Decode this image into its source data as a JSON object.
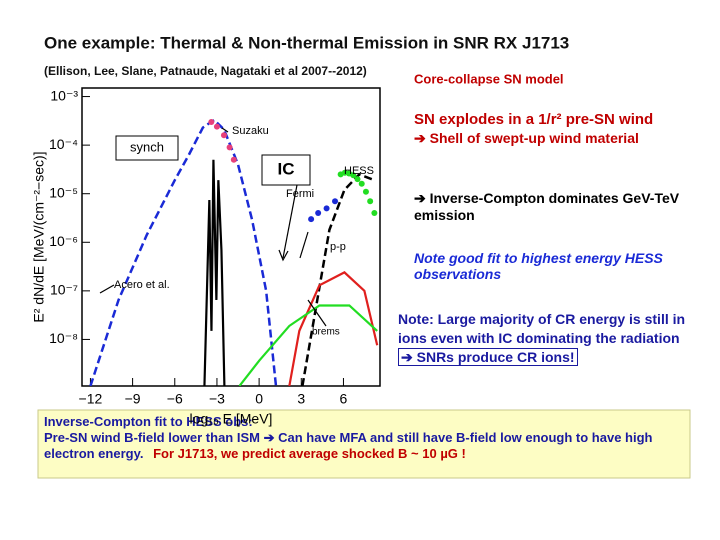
{
  "slide": {
    "title": "One example: Thermal & Non-thermal Emission in   SNR RX J1713",
    "subtitle": "(Ellison, Lee, Slane, Patnaude, Nagataki et al 2007--2012)",
    "model": "Core-collapse SN model",
    "point1": "SN explodes in a 1/r² pre-SN wind",
    "point2": "➔ Shell of swept-up wind material",
    "point3": "➔ Inverse-Compton dominates GeV-TeV emission",
    "note_fit": "Note good fit to highest energy HESS observations",
    "note_ions": "Note: Large majority of CR energy is still in ions even with IC dominating the radiation",
    "note_conclusion": "➔ SNRs produce CR ions!",
    "box_line1": "Inverse-Compton fit to HESS obs:",
    "box_line2": "Pre-SN wind B-field lower than ISM ➔ Can have MFA and still have B-field low enough to have high electron energy.",
    "box_line3": "For J1713, we predict average shocked B ~ 10 µG !"
  },
  "chart_data": {
    "type": "line",
    "xlabel": "log₁₀ E [MeV]",
    "ylabel": "E² dN/dE [MeV/(cm⁻²−sec)]",
    "xlim": [
      -12.6,
      8.6
    ],
    "xticks": [
      {
        "value": -12,
        "label": "−12"
      },
      {
        "value": -9,
        "label": "−9"
      },
      {
        "value": -6,
        "label": "−6"
      },
      {
        "value": -3,
        "label": "−3"
      },
      0,
      3,
      6
    ],
    "ylim": [
      1.1e-09,
      0.0015
    ],
    "ylog": true,
    "yticks": [
      {
        "value": 0.001,
        "label": "10⁻³"
      },
      {
        "value": 0.0001,
        "label": "10⁻⁴"
      },
      {
        "value": 1e-05,
        "label": "10⁻⁵"
      },
      {
        "value": 1e-06,
        "label": "10⁻⁶"
      },
      {
        "value": 1e-07,
        "label": "10⁻⁷"
      },
      {
        "value": 1e-08,
        "label": "10⁻⁸"
      }
    ],
    "annotations": [
      "synch",
      "IC",
      "Suzaku",
      "HESS",
      "Fermi",
      "p-p",
      "brems",
      "Acero et al."
    ],
    "series": [
      {
        "name": "synch",
        "kind": "line",
        "color": "#1a2ad6",
        "dash": true,
        "x": [
          -12,
          -10,
          -8,
          -6,
          -5,
          -4,
          -3.2,
          -2.5,
          -1.5,
          -0.5,
          0.5,
          1.2
        ],
        "values": [
          1.1e-09,
          6.5e-08,
          1.4e-06,
          1.9e-05,
          6.3e-05,
          0.00023,
          0.00033,
          0.00021,
          4e-05,
          2.9e-06,
          1e-07,
          1.1e-09
        ]
      },
      {
        "kind": "line",
        "color": "#000000",
        "dash": false,
        "x": [
          -3.89,
          -3.54,
          -3.39,
          -3.25,
          -3.04,
          -2.9,
          -2.68,
          -2.47
        ],
        "values": [
          1.1e-09,
          7.4e-06,
          1.5e-08,
          5e-05,
          6.5e-08,
          1.9e-05,
          6.9e-07,
          1.1e-09
        ]
      },
      {
        "name": "IC",
        "kind": "line",
        "color": "#000000",
        "dash": true,
        "x": [
          3.08,
          5.0,
          6.07,
          7.13,
          8.2
        ],
        "values": [
          1.1e-09,
          1.8e-06,
          1.2e-05,
          2.5e-05,
          1.9e-05
        ]
      },
      {
        "name": "p-p",
        "kind": "line",
        "color": "#e0201e",
        "dash": false,
        "x": [
          2.15,
          2.86,
          4.29,
          6.07,
          7.49,
          8.4
        ],
        "values": [
          1.1e-09,
          1.5e-08,
          1.3e-07,
          2.4e-07,
          1e-07,
          7.6e-09
        ]
      },
      {
        "name": "brems",
        "kind": "line",
        "color": "#22dd22",
        "dash": false,
        "x": [
          -1.4,
          0.02,
          2.15,
          4.29,
          6.42,
          8.4
        ],
        "values": [
          1.1e-09,
          3.7e-09,
          1.9e-08,
          5e-08,
          5e-08,
          1.5e-08
        ]
      },
      {
        "name": "Suzaku",
        "kind": "points",
        "color": "#e8407a",
        "x": [
          -3.4,
          -3.0,
          -2.5,
          -2.1,
          -1.8
        ],
        "values": [
          0.0003,
          0.00024,
          0.00016,
          9e-05,
          5e-05
        ]
      },
      {
        "name": "Fermi",
        "kind": "points",
        "color": "#1a2ad6",
        "x": [
          3.7,
          4.2,
          4.8,
          5.4
        ],
        "values": [
          3e-06,
          4e-06,
          5e-06,
          7e-06
        ]
      },
      {
        "name": "HESS",
        "kind": "points",
        "color": "#22dd22",
        "x": [
          5.8,
          6.1,
          6.4,
          6.7,
          7.0,
          7.3,
          7.6,
          7.9,
          8.2
        ],
        "values": [
          2.5e-05,
          2.7e-05,
          2.6e-05,
          2.4e-05,
          2e-05,
          1.6e-05,
          1.1e-05,
          7e-06,
          4e-06
        ]
      }
    ]
  }
}
